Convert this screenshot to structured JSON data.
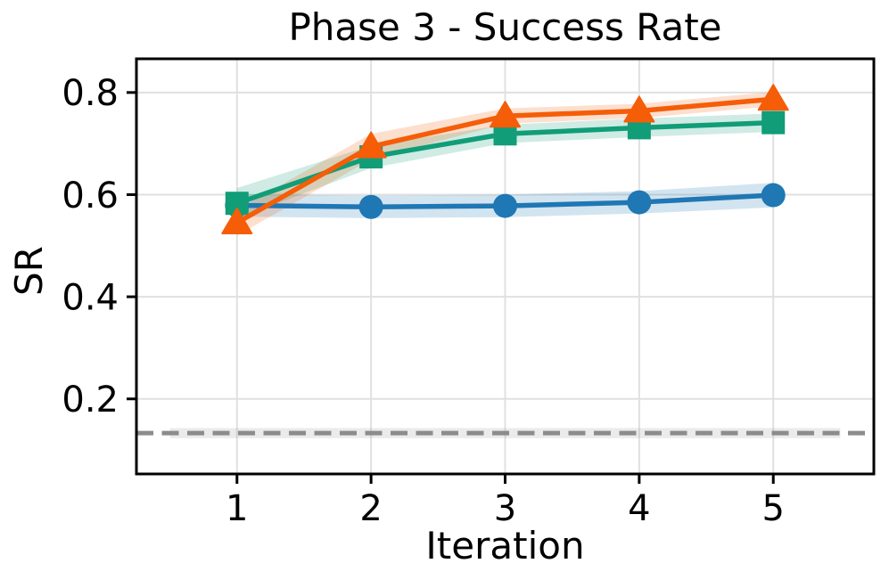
{
  "chart_data": {
    "type": "line",
    "title": "Phase 3 - Success Rate",
    "xlabel": "Iteration",
    "ylabel": "SR",
    "x": [
      1,
      2,
      3,
      4,
      5
    ],
    "series": [
      {
        "name": "blue-circle-series",
        "marker": "circle",
        "color": "#1f77b4",
        "values": [
          0.579,
          0.576,
          0.578,
          0.585,
          0.599
        ],
        "band_halfwidth": [
          0.022,
          0.022,
          0.022,
          0.022,
          0.024
        ]
      },
      {
        "name": "green-square-series",
        "marker": "square",
        "color": "#109d78",
        "values": [
          0.583,
          0.674,
          0.719,
          0.731,
          0.741
        ],
        "band_halfwidth": [
          0.03,
          0.022,
          0.018,
          0.018,
          0.018
        ]
      },
      {
        "name": "orange-triangle-series",
        "marker": "triangle-up",
        "color": "#f55d08",
        "values": [
          0.545,
          0.694,
          0.754,
          0.764,
          0.787
        ],
        "band_halfwidth": [
          0.025,
          0.025,
          0.015,
          0.014,
          0.014
        ]
      }
    ],
    "baseline": {
      "name": "baseline-dashed-line",
      "style": "dashed",
      "value": 0.133,
      "color": "#8c8c8c",
      "band_color": "#999999",
      "band_x_start": 0.5,
      "band_x_end": 5.5,
      "band_halfwidth": 0.01
    },
    "xticks": [
      1,
      2,
      3,
      4,
      5
    ],
    "xtick_labels": [
      "1",
      "2",
      "3",
      "4",
      "5"
    ],
    "yticks": [
      0.2,
      0.4,
      0.6,
      0.8
    ],
    "ytick_labels": [
      "0.2",
      "0.4",
      "0.6",
      "0.8"
    ],
    "xlim": [
      0.25,
      5.75
    ],
    "ylim": [
      0.053,
      0.866
    ],
    "grid": true,
    "legend": false,
    "grid_color": "#e0e0e0",
    "spine_color": "#000000",
    "band_opacity": 0.2
  }
}
